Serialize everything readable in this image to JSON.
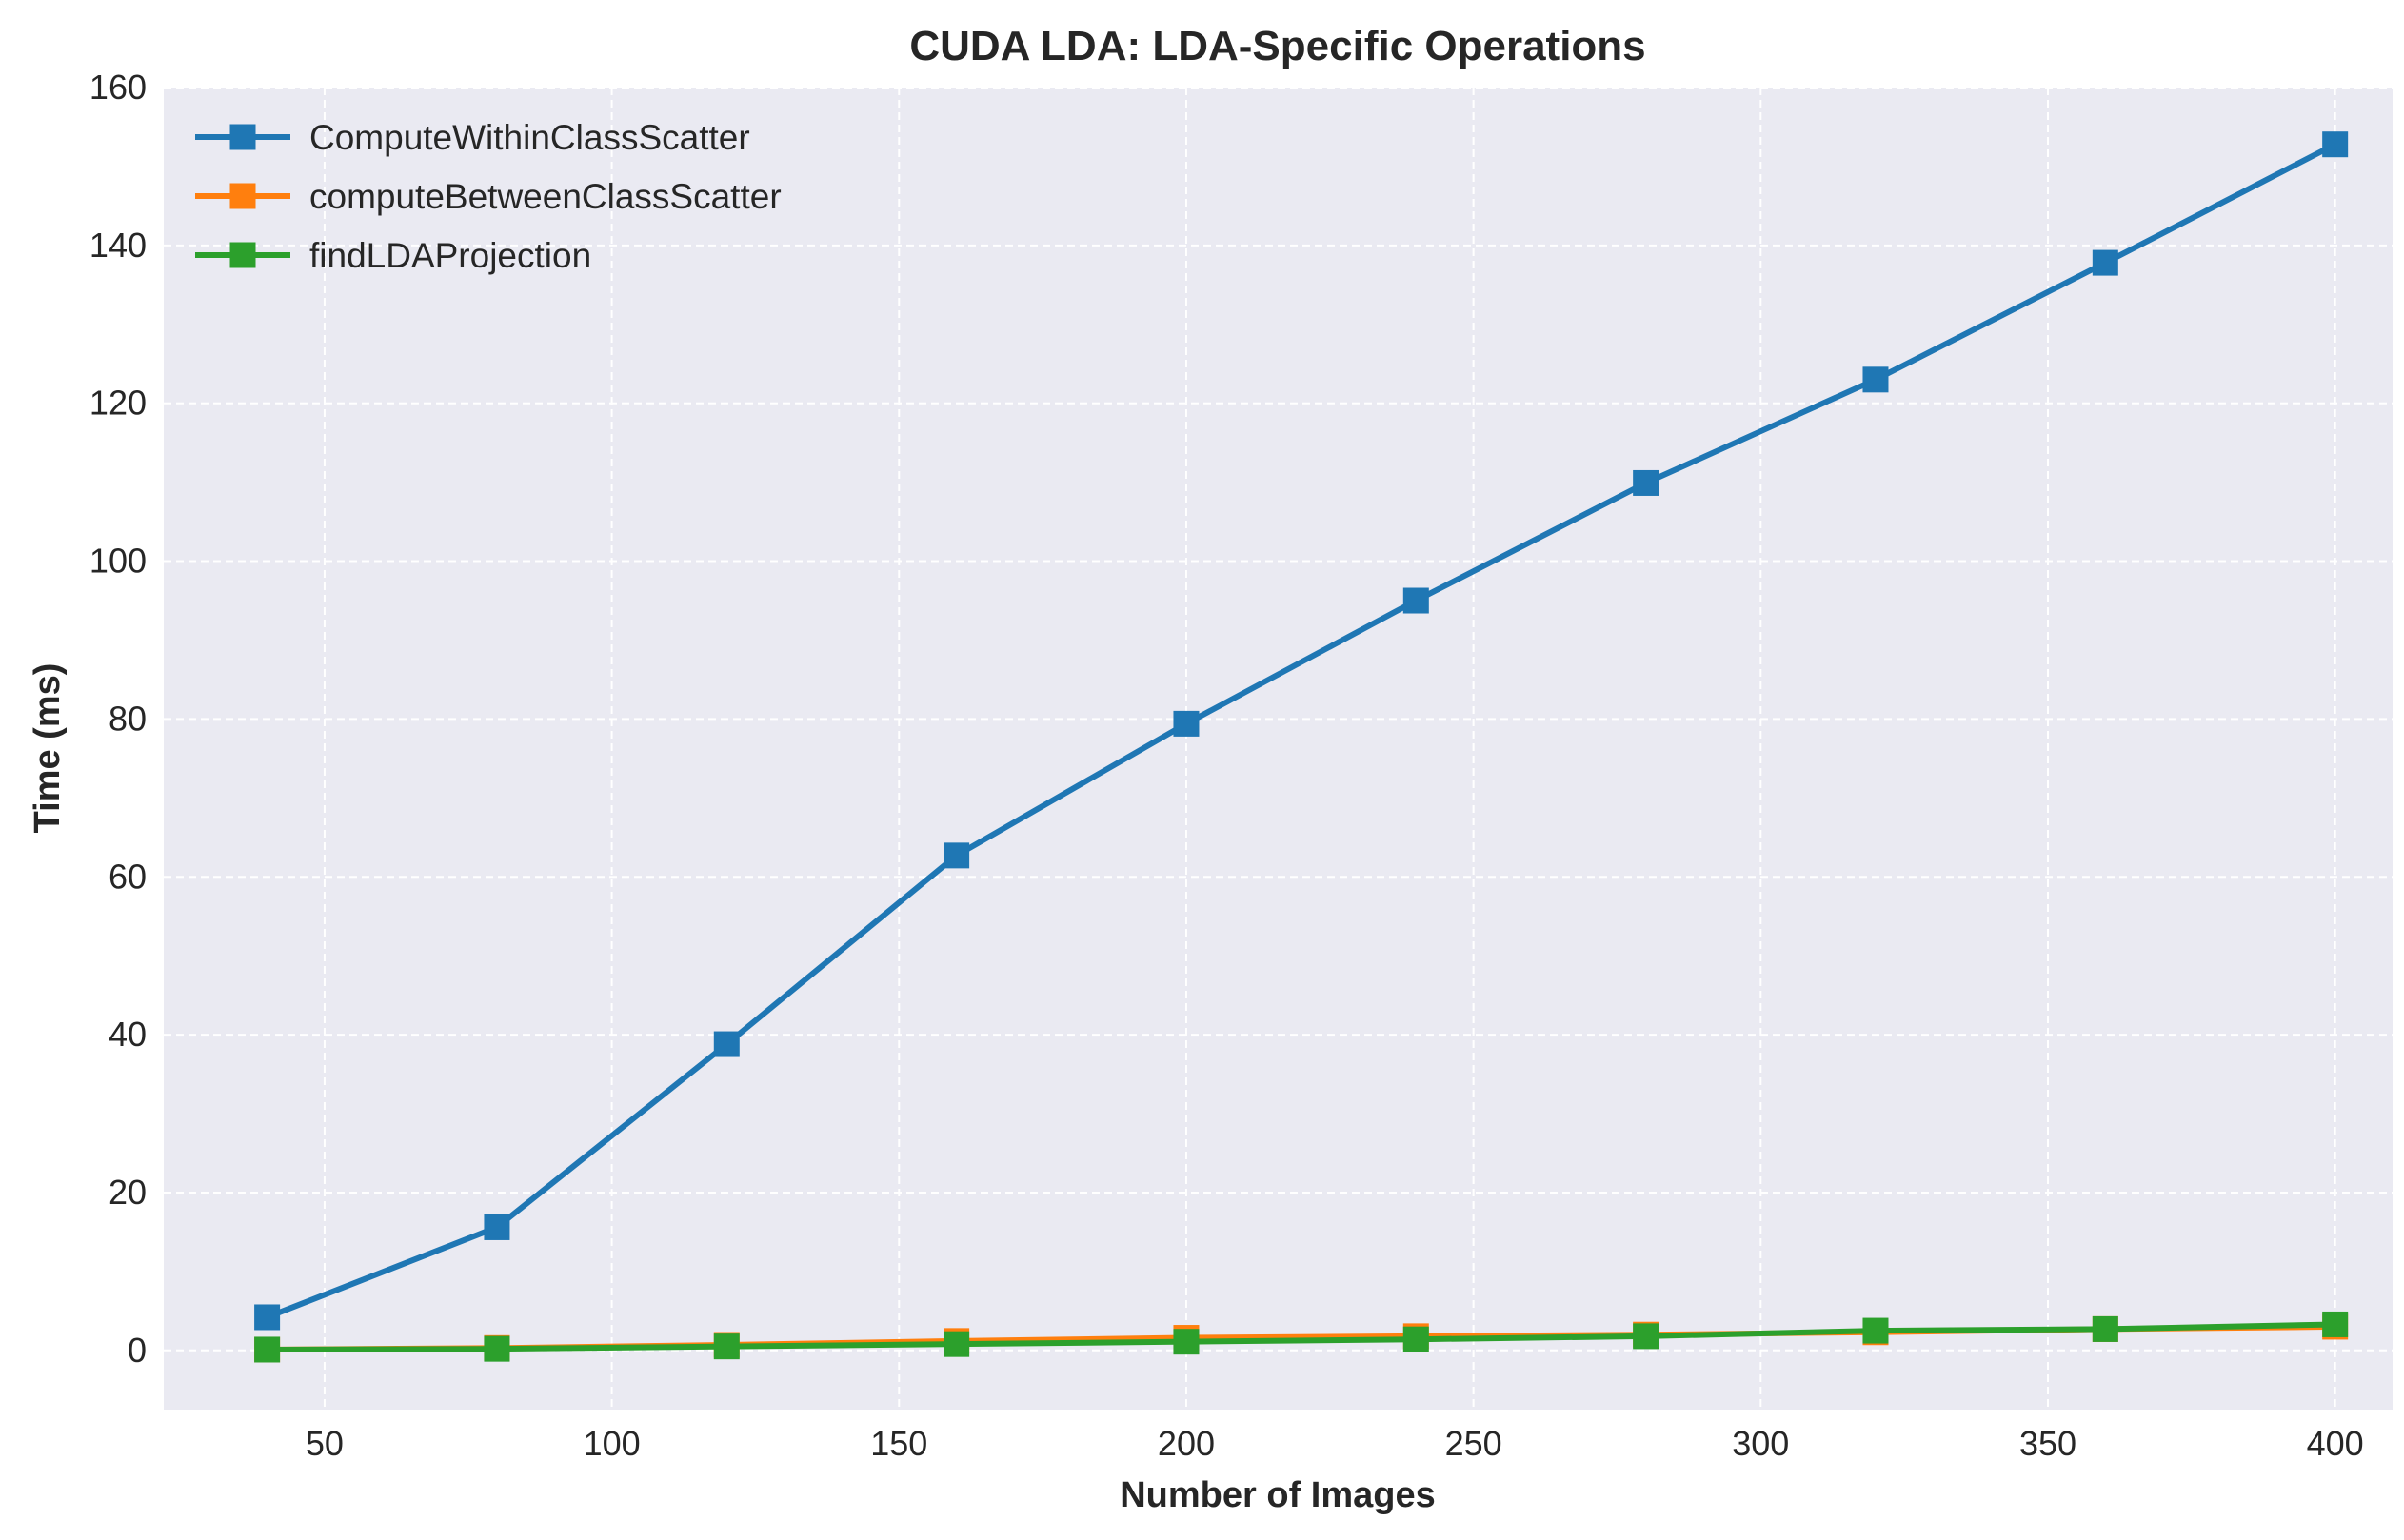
{
  "chart_data": {
    "type": "line",
    "title": "CUDA LDA: LDA-Specific Operations",
    "xlabel": "Number of Images",
    "ylabel": "Time (ms)",
    "x": [
      40,
      80,
      120,
      160,
      200,
      240,
      280,
      320,
      360,
      400
    ],
    "xlim": [
      22,
      410
    ],
    "ylim": [
      -7.5,
      160
    ],
    "xticks": [
      50,
      100,
      150,
      200,
      250,
      300,
      350,
      400
    ],
    "yticks": [
      0,
      20,
      40,
      60,
      80,
      100,
      120,
      140,
      160
    ],
    "grid": true,
    "grid_style": "dashed",
    "legend_position": "top-left",
    "marker": "square",
    "series": [
      {
        "name": "ComputeWithinClassScatter",
        "color": "#1f77b4",
        "values": [
          4.2,
          15.6,
          38.8,
          62.7,
          79.4,
          95.0,
          109.9,
          123.0,
          137.8,
          152.8
        ]
      },
      {
        "name": "computeBetweenClassScatter",
        "color": "#ff7f0e",
        "values": [
          0.1,
          0.3,
          0.7,
          1.2,
          1.6,
          1.8,
          2.0,
          2.3,
          2.7,
          3.0
        ]
      },
      {
        "name": "findLDAProjection",
        "color": "#2ca02c",
        "values": [
          0.1,
          0.2,
          0.5,
          0.8,
          1.1,
          1.4,
          1.8,
          2.5,
          2.7,
          3.3
        ]
      }
    ]
  }
}
